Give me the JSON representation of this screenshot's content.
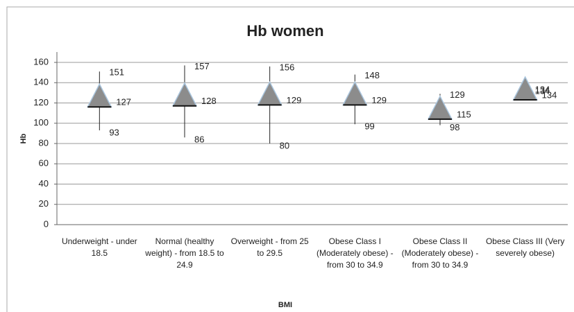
{
  "chart_data": {
    "type": "hilo",
    "title": "Hb women",
    "y_label": "Hb",
    "x_label": "BMI",
    "categories": [
      "Underweight - under 18.5",
      "Normal (healthy weight) - from 18.5 to 24.9",
      "Overweight - from 25 to 29.5",
      "Obese Class I (Moderately obese) - from 30 to 34.9",
      "Obese Class II (Moderately obese) - from 30 to 34.9",
      "Obese Class III (Very severely obese)"
    ],
    "high": [
      151,
      157,
      156,
      148,
      129,
      134
    ],
    "low": [
      93,
      86,
      80,
      99,
      98,
      134
    ],
    "mean": [
      127,
      128,
      129,
      129,
      115,
      134
    ],
    "color": "#8c8c8c",
    "ylim": [
      0,
      160
    ],
    "yticks": [
      0,
      20,
      40,
      60,
      80,
      100,
      120,
      140,
      160
    ],
    "grid": true
  }
}
